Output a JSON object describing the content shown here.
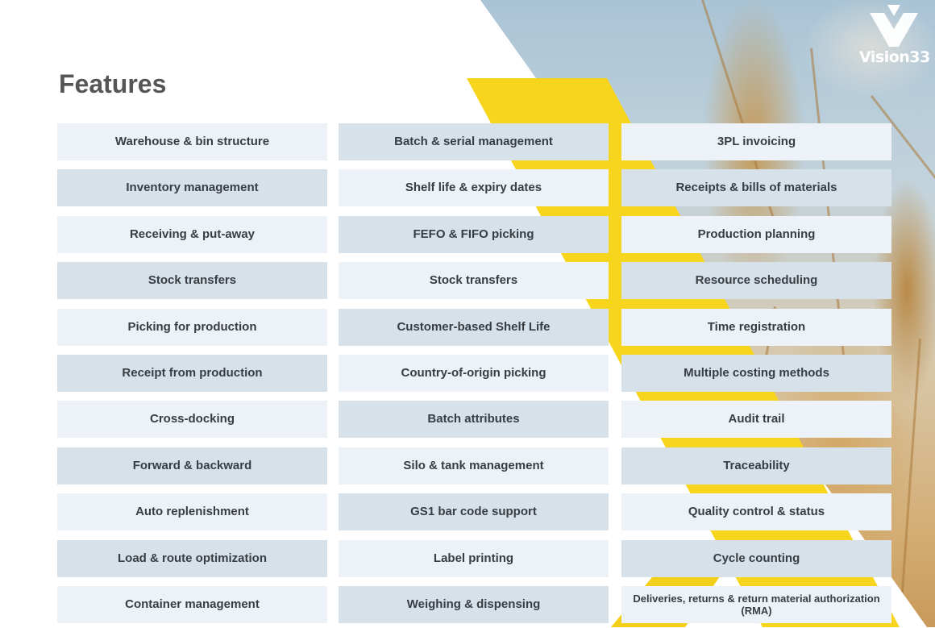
{
  "brand": {
    "logo_text": "Vision33",
    "accent": "#f7d51d"
  },
  "heading": "Features",
  "columns": [
    {
      "items": [
        "Warehouse & bin structure",
        "Inventory management",
        "Receiving & put-away",
        "Stock transfers",
        "Picking for production",
        "Receipt from production",
        "Cross-docking",
        "Forward & backward",
        "Auto replenishment",
        "Load & route optimization",
        "Container management"
      ]
    },
    {
      "items": [
        "Batch & serial management",
        "Shelf life & expiry dates",
        "FEFO & FIFO picking",
        "Stock transfers",
        "Customer-based Shelf Life",
        "Country-of-origin picking",
        "Batch attributes",
        "Silo & tank management",
        "GS1 bar code support",
        "Label printing",
        "Weighing & dispensing"
      ]
    },
    {
      "items": [
        "3PL invoicing",
        "Receipts & bills of materials",
        "Production planning",
        "Resource scheduling",
        "Time registration",
        "Multiple costing methods",
        "Audit trail",
        "Traceability",
        "Quality control & status",
        "Cycle counting",
        "Deliveries, returns & return material authorization (RMA)"
      ]
    }
  ]
}
